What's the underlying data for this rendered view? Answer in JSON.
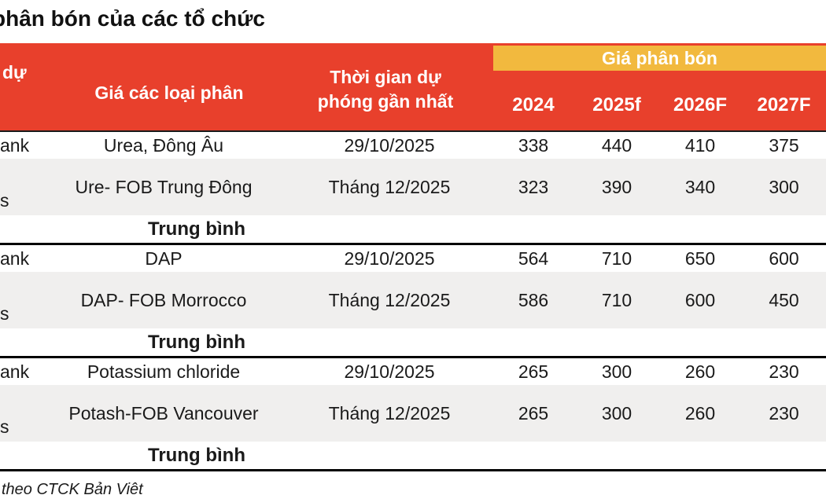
{
  "title": "phân bón của các tổ chức",
  "footer_note": "theo CTCK Bản Việt",
  "colors": {
    "header_red": "#E8402C",
    "band_yellow": "#F2B93E",
    "row_alt_gray": "#F0EFEE",
    "separator_black": "#000000"
  },
  "table": {
    "header": {
      "org_fragment": "dự",
      "product_col": "Giá các loại phân",
      "time_col_line1": "Thời gian dự",
      "time_col_line2": "phóng gần nhất",
      "price_group": "Giá phân bón",
      "years": [
        "2024",
        "2025f",
        "2026F",
        "2027F"
      ]
    },
    "sections": [
      {
        "rows": [
          {
            "org_fragment": "ank",
            "product": "Urea, Đông Âu",
            "time": "29/10/2025",
            "values": [
              "338",
              "440",
              "410",
              "375"
            ]
          },
          {
            "org_fragment": "s",
            "product": "Ure- FOB Trung Đông",
            "time": "Tháng 12/2025",
            "values": [
              "323",
              "390",
              "340",
              "300"
            ]
          }
        ],
        "average_label": "Trung bình"
      },
      {
        "rows": [
          {
            "org_fragment": "ank",
            "product": "DAP",
            "time": "29/10/2025",
            "values": [
              "564",
              "710",
              "650",
              "600"
            ]
          },
          {
            "org_fragment": "s",
            "product": "DAP- FOB Morrocco",
            "time": "Tháng 12/2025",
            "values": [
              "586",
              "710",
              "600",
              "450"
            ]
          }
        ],
        "average_label": "Trung bình"
      },
      {
        "rows": [
          {
            "org_fragment": "ank",
            "product": "Potassium chloride",
            "time": "29/10/2025",
            "values": [
              "265",
              "300",
              "260",
              "230"
            ]
          },
          {
            "org_fragment": "s",
            "product": "Potash-FOB Vancouver",
            "time": "Tháng 12/2025",
            "values": [
              "265",
              "300",
              "260",
              "230"
            ]
          }
        ],
        "average_label": "Trung bình"
      }
    ]
  }
}
